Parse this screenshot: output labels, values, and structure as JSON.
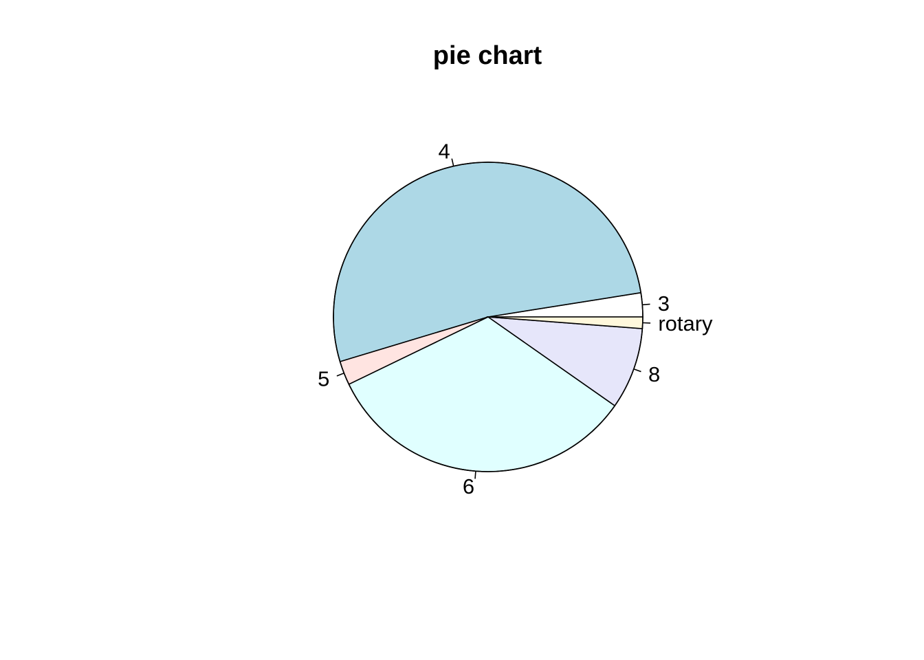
{
  "chart_data": {
    "type": "pie",
    "title": "pie chart",
    "direction": "counterclockwise",
    "start_angle_deg": 0,
    "slices": [
      {
        "label": "3",
        "value": 2.5,
        "color": "#ffffff"
      },
      {
        "label": "4",
        "value": 52.0,
        "color": "#add8e6"
      },
      {
        "label": "5",
        "value": 2.5,
        "color": "#ffe4e1"
      },
      {
        "label": "6",
        "value": 33.0,
        "color": "#e0ffff"
      },
      {
        "label": "8",
        "value": 8.5,
        "color": "#e6e6fa"
      },
      {
        "label": "rotary",
        "value": 1.2,
        "color": "#fff8dc"
      }
    ]
  }
}
